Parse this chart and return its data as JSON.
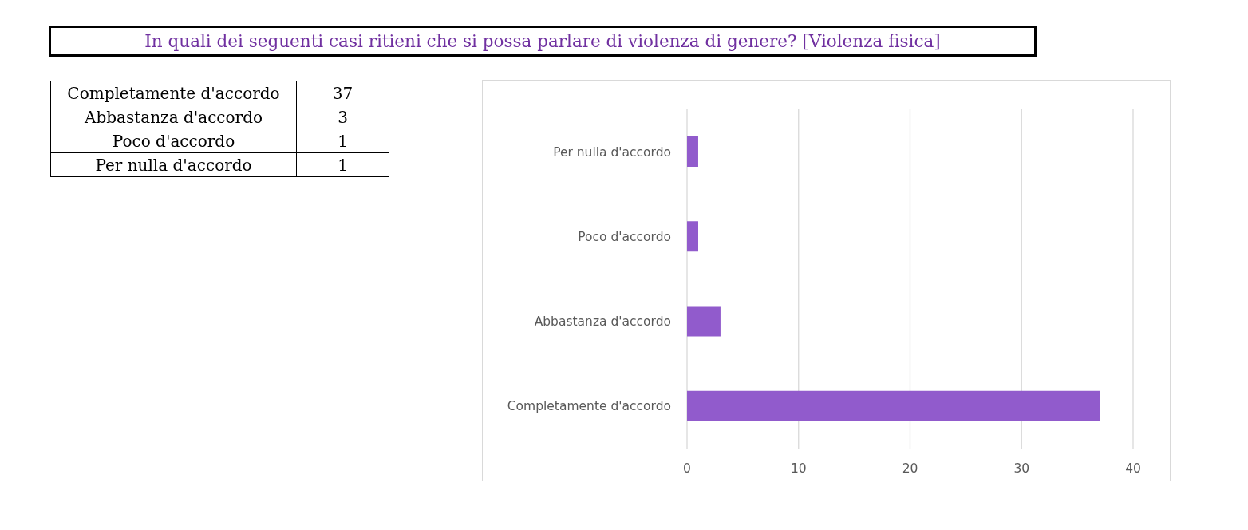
{
  "chart_data": [
    {
      "type": "other",
      "title": "In quali dei seguenti casi ritieni che si possa parlare di violenza di genere? [Violenza fisica]",
      "categories": [
        "Completamente d'accordo",
        "Abbastanza d'accordo",
        "Poco d'accordo",
        "Per nulla d'accordo"
      ],
      "values": [
        37,
        3,
        1,
        1
      ],
      "data_labels": true
    },
    {
      "type": "bar",
      "orientation": "horizontal",
      "categories": [
        "Per nulla d'accordo",
        "Poco d'accordo",
        "Abbastanza d'accordo",
        "Completamente d'accordo"
      ],
      "values": [
        1,
        1,
        3,
        37
      ],
      "color": "#915bcc",
      "xlim": [
        0,
        40
      ],
      "xticks": [
        0,
        10,
        20,
        30,
        40
      ],
      "grid": "x"
    }
  ]
}
